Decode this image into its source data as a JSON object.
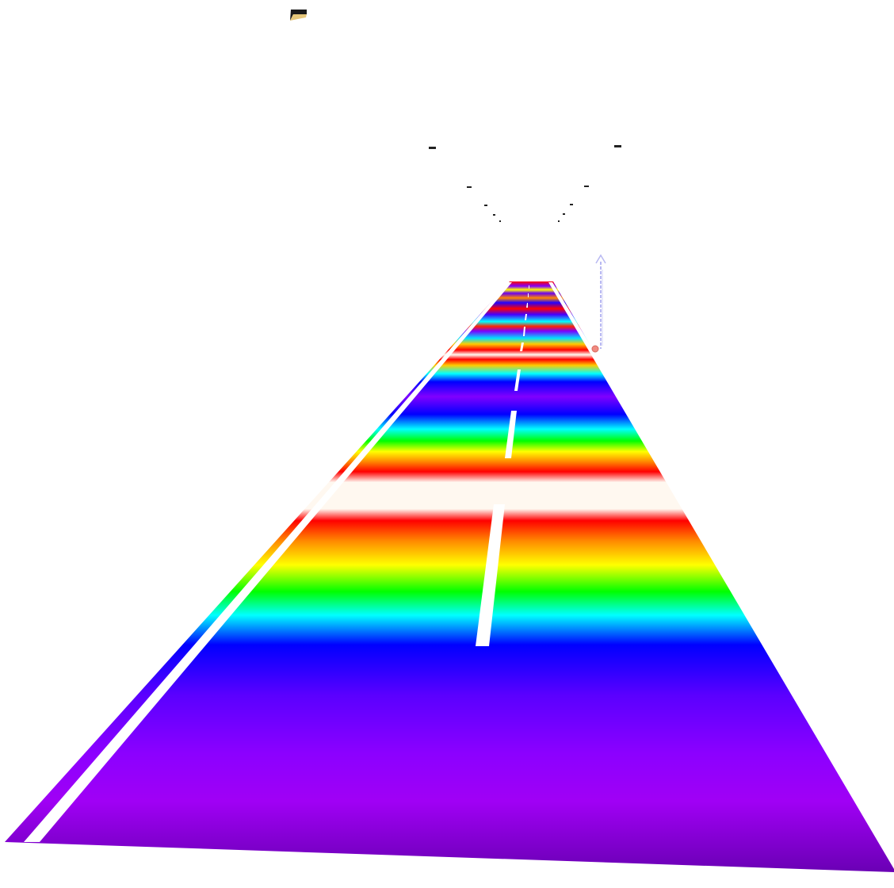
{
  "scene": {
    "background": "#ffffff",
    "road_colormap": [
      "#6a00b4",
      "#8c00e6",
      "#a000f5",
      "#7a00ff",
      "#0000ff",
      "#00ffff",
      "#00ff00",
      "#ffff00",
      "#ff8c00",
      "#ff0000",
      "#fff8f0"
    ],
    "lane_marking_color": "#ffffff",
    "lamp_color": "#222222",
    "vector_arrow_color": "#b9b9f2",
    "probe_marker_color": "#f08a80",
    "objects": [
      "road-surface",
      "lane-markings",
      "street-lamps",
      "vertical-vector-arrow",
      "probe-marker"
    ]
  }
}
